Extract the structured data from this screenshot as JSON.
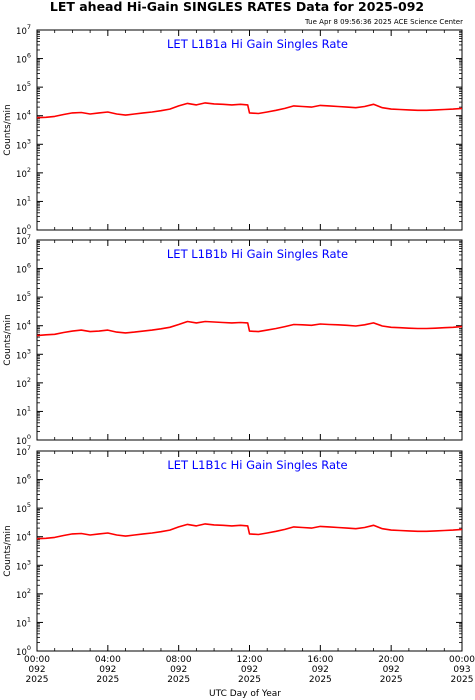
{
  "header": {
    "title": "LET ahead Hi-Gain SINGLES RATES Data for 2025-092",
    "timestamp": "Tue Apr  8 09:56:36 2025 ACE Science Center"
  },
  "x_axis": {
    "label": "UTC Day of Year",
    "range_hours": [
      0,
      24
    ],
    "ticks": [
      {
        "hour": 0,
        "lines": [
          "00:00",
          "092",
          "2025"
        ]
      },
      {
        "hour": 4,
        "lines": [
          "04:00",
          "092",
          "2025"
        ]
      },
      {
        "hour": 8,
        "lines": [
          "08:00",
          "092",
          "2025"
        ]
      },
      {
        "hour": 12,
        "lines": [
          "12:00",
          "092",
          "2025"
        ]
      },
      {
        "hour": 16,
        "lines": [
          "16:00",
          "092",
          "2025"
        ]
      },
      {
        "hour": 20,
        "lines": [
          "20:00",
          "092",
          "2025"
        ]
      },
      {
        "hour": 24,
        "lines": [
          "00:00",
          "093",
          "2025"
        ]
      }
    ]
  },
  "colors": {
    "series": "#ff0000",
    "panel_title": "#0000ff",
    "axes": "#000000"
  },
  "chart_data": [
    {
      "type": "line",
      "title": "LET L1B1a Hi Gain Singles Rate",
      "ylabel": "Counts/min",
      "yscale": "log",
      "ylim": [
        1,
        10000000
      ],
      "ytick_exponents": [
        0,
        1,
        2,
        3,
        4,
        5,
        6,
        7
      ],
      "x": [
        0,
        0.5,
        1,
        1.5,
        2,
        2.5,
        3,
        3.5,
        4,
        4.5,
        5,
        5.5,
        6,
        6.5,
        7,
        7.5,
        8,
        8.5,
        9,
        9.5,
        10,
        10.5,
        11,
        11.5,
        11.9,
        12,
        12.5,
        13,
        13.5,
        14,
        14.5,
        15,
        15.5,
        16,
        16.5,
        17,
        17.5,
        18,
        18.5,
        19,
        19.5,
        20,
        20.5,
        21,
        21.5,
        22,
        22.5,
        23,
        23.5,
        24
      ],
      "series": [
        {
          "values": [
            8500,
            8800,
            9500,
            11000,
            12500,
            13000,
            11500,
            12500,
            13500,
            11500,
            10500,
            11500,
            12500,
            13500,
            15000,
            17000,
            22000,
            27000,
            24000,
            28000,
            26000,
            25000,
            24000,
            25000,
            24000,
            12500,
            12000,
            13500,
            15500,
            18000,
            22000,
            21000,
            20000,
            23000,
            22000,
            21000,
            20000,
            19000,
            21000,
            25000,
            19000,
            17000,
            16500,
            16000,
            15500,
            15500,
            16000,
            16500,
            17000,
            18000
          ]
        }
      ]
    },
    {
      "type": "line",
      "title": "LET L1B1b Hi Gain Singles Rate",
      "ylabel": "Counts/min",
      "yscale": "log",
      "ylim": [
        1,
        10000000
      ],
      "ytick_exponents": [
        0,
        1,
        2,
        3,
        4,
        5,
        6,
        7
      ],
      "x": [
        0,
        0.5,
        1,
        1.5,
        2,
        2.5,
        3,
        3.5,
        4,
        4.5,
        5,
        5.5,
        6,
        6.5,
        7,
        7.5,
        8,
        8.5,
        9,
        9.5,
        10,
        10.5,
        11,
        11.5,
        11.9,
        12,
        12.5,
        13,
        13.5,
        14,
        14.5,
        15,
        15.5,
        16,
        16.5,
        17,
        17.5,
        18,
        18.5,
        19,
        19.5,
        20,
        20.5,
        21,
        21.5,
        22,
        22.5,
        23,
        23.5,
        24
      ],
      "series": [
        {
          "values": [
            4500,
            4800,
            5000,
            5800,
            6500,
            7000,
            6200,
            6500,
            7000,
            6000,
            5600,
            6000,
            6500,
            7000,
            7800,
            8800,
            11000,
            14000,
            12500,
            14000,
            13500,
            13000,
            12500,
            13000,
            12500,
            6500,
            6200,
            7000,
            8000,
            9300,
            11000,
            10800,
            10300,
            11500,
            11000,
            10800,
            10300,
            9800,
            10800,
            12500,
            9800,
            8800,
            8500,
            8200,
            8000,
            8000,
            8200,
            8500,
            8800,
            9300
          ]
        }
      ]
    },
    {
      "type": "line",
      "title": "LET L1B1c Hi Gain Singles Rate",
      "ylabel": "Counts/min",
      "yscale": "log",
      "ylim": [
        1,
        10000000
      ],
      "ytick_exponents": [
        0,
        1,
        2,
        3,
        4,
        5,
        6,
        7
      ],
      "x": [
        0,
        0.5,
        1,
        1.5,
        2,
        2.5,
        3,
        3.5,
        4,
        4.5,
        5,
        5.5,
        6,
        6.5,
        7,
        7.5,
        8,
        8.5,
        9,
        9.5,
        10,
        10.5,
        11,
        11.5,
        11.9,
        12,
        12.5,
        13,
        13.5,
        14,
        14.5,
        15,
        15.5,
        16,
        16.5,
        17,
        17.5,
        18,
        18.5,
        19,
        19.5,
        20,
        20.5,
        21,
        21.5,
        22,
        22.5,
        23,
        23.5,
        24
      ],
      "series": [
        {
          "values": [
            8500,
            8800,
            9500,
            11000,
            12500,
            13000,
            11500,
            12500,
            13500,
            11500,
            10500,
            11500,
            12500,
            13500,
            15000,
            17000,
            22000,
            27000,
            24000,
            28000,
            26000,
            25000,
            24000,
            25000,
            24000,
            12500,
            12000,
            13500,
            15500,
            18000,
            22000,
            21000,
            20000,
            23000,
            22000,
            21000,
            20000,
            19000,
            21000,
            25000,
            19000,
            17000,
            16500,
            16000,
            15500,
            15500,
            16000,
            16500,
            17000,
            18000
          ]
        }
      ]
    }
  ]
}
